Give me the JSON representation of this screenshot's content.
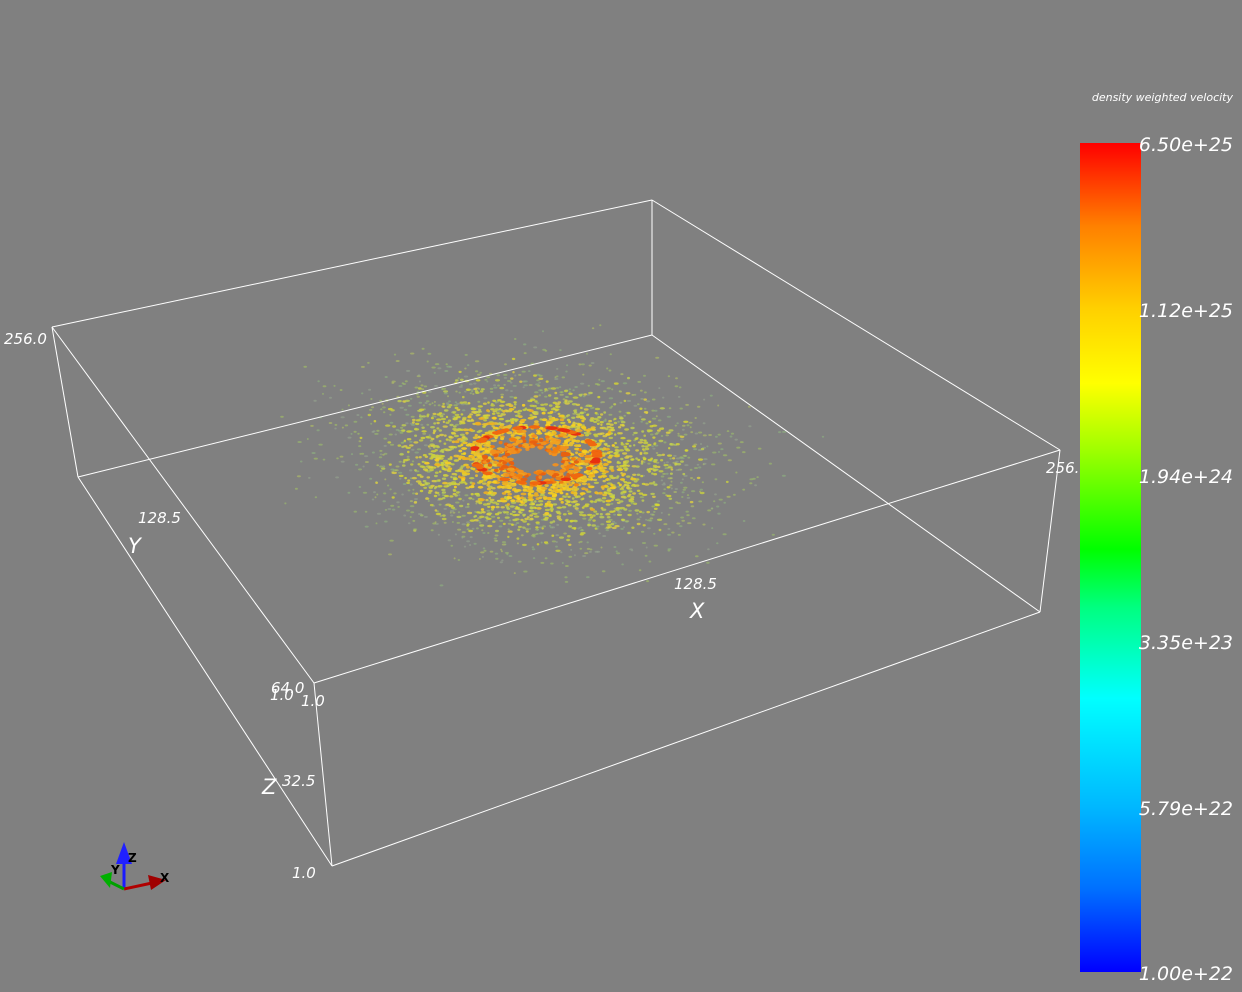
{
  "colorbar": {
    "title": "density weighted velocity",
    "labels": [
      "6.50e+25",
      "1.12e+25",
      "1.94e+24",
      "3.35e+23",
      "5.79e+22",
      "1.00e+22"
    ],
    "colors": [
      "#ff0000",
      "#ff8000",
      "#ffff00",
      "#00ff00",
      "#00ffff",
      "#0000ff"
    ]
  },
  "axes": {
    "x_title": "X",
    "y_title": "Y",
    "z_title": "Z",
    "x_ticks": [
      "1.0",
      "128.5",
      "256.0"
    ],
    "y_ticks": [
      "1.0",
      "128.5",
      "256.0"
    ],
    "z_ticks": [
      "1.0",
      "32.5",
      "64.0"
    ]
  },
  "orientation_triad": {
    "x_label": "X",
    "y_label": "Y",
    "z_label": "Z"
  },
  "theme": {
    "background": "#808080",
    "outline": "#ffffff"
  }
}
